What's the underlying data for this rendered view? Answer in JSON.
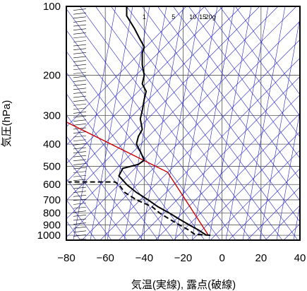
{
  "chart_data": {
    "type": "line",
    "xlabel": "気温(実線), 露点(破線)",
    "ylabel": "気圧(hPa)",
    "x_ticks": [
      -80,
      -60,
      -40,
      -20,
      0,
      20,
      40
    ],
    "y_ticks": [
      100,
      200,
      300,
      400,
      500,
      600,
      700,
      800,
      900,
      1000
    ],
    "xlim": [
      -80,
      40
    ],
    "ylim": [
      1050,
      100
    ],
    "y_scale": "log",
    "grid": true,
    "colors": {
      "temperature": "#000000",
      "dewpoint": "#000000",
      "adiabats": "#2222cc",
      "parcel": "#cc0000",
      "grid": "#555555"
    },
    "mixing_ratio_labels": [
      "1",
      "5",
      "10",
      "15",
      "20g"
    ],
    "mixing_ratio_values": [
      1,
      5,
      10,
      15,
      20
    ],
    "series": [
      {
        "style": "solid",
        "points": [
          [
            -8,
            1000
          ],
          [
            -12,
            950
          ],
          [
            -17,
            900
          ],
          [
            -22,
            850
          ],
          [
            -27,
            800
          ],
          [
            -33,
            750
          ],
          [
            -38,
            700
          ],
          [
            -44,
            650
          ],
          [
            -49,
            600
          ],
          [
            -53,
            550
          ],
          [
            -51,
            510
          ],
          [
            -43,
            490
          ],
          [
            -40,
            470
          ],
          [
            -42,
            430
          ],
          [
            -44,
            400
          ],
          [
            -43,
            370
          ],
          [
            -41,
            345
          ],
          [
            -42,
            310
          ],
          [
            -41,
            285
          ],
          [
            -40,
            255
          ],
          [
            -39,
            235
          ],
          [
            -41,
            218
          ],
          [
            -40,
            200
          ],
          [
            -41,
            180
          ],
          [
            -41,
            160
          ],
          [
            -40,
            150
          ],
          [
            -42,
            140
          ],
          [
            -45,
            125
          ],
          [
            -49,
            110
          ],
          [
            -49,
            100
          ]
        ]
      },
      {
        "style": "dashed",
        "points": [
          [
            -6,
            1000
          ],
          [
            -14,
            990
          ],
          [
            -17,
            950
          ],
          [
            -22,
            900
          ],
          [
            -27,
            850
          ],
          [
            -32,
            800
          ],
          [
            -36,
            750
          ],
          [
            -44,
            700
          ],
          [
            -50,
            650
          ],
          [
            -53,
            600
          ],
          [
            -55,
            585
          ],
          [
            -79,
            585
          ]
        ]
      }
    ],
    "parcel_line": [
      [
        -80,
        320
      ],
      [
        -28,
        530
      ],
      [
        -7,
        1000
      ]
    ]
  }
}
